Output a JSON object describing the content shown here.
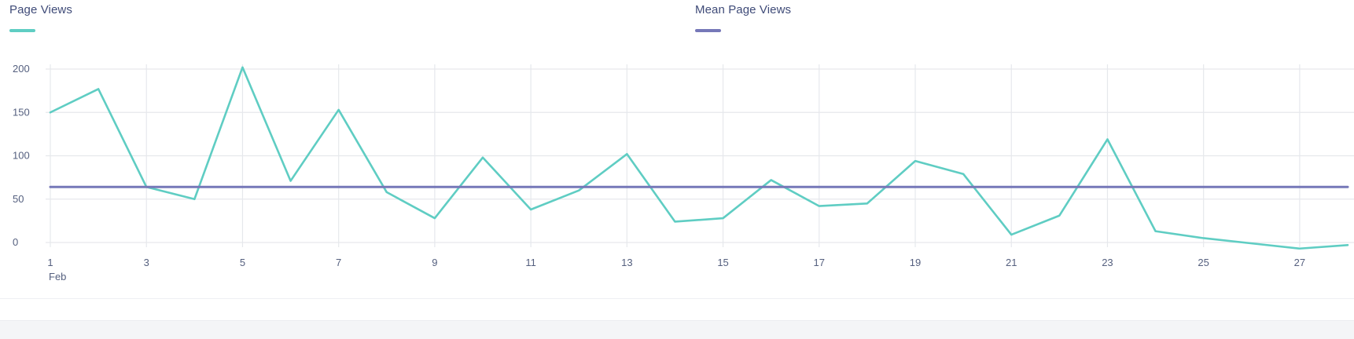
{
  "legend": {
    "series1_label": "Page Views",
    "series2_label": "Mean Page Views"
  },
  "colors": {
    "page_views": "#5fcdc3",
    "mean": "#7678b8",
    "grid": "#e6e8ec",
    "axis_text": "#55607f"
  },
  "chart_data": {
    "type": "line",
    "x": [
      1,
      2,
      3,
      4,
      5,
      6,
      7,
      8,
      9,
      10,
      11,
      12,
      13,
      14,
      15,
      16,
      17,
      18,
      19,
      20,
      21,
      22,
      23,
      24,
      25,
      26,
      27,
      28
    ],
    "x_tick_labels": [
      "1",
      "3",
      "5",
      "7",
      "9",
      "11",
      "13",
      "15",
      "17",
      "19",
      "21",
      "23",
      "25",
      "27"
    ],
    "x_tick_values": [
      1,
      3,
      5,
      7,
      9,
      11,
      13,
      15,
      17,
      19,
      21,
      23,
      25,
      27
    ],
    "x_sublabel": "Feb",
    "y_tick_labels": [
      "0",
      "50",
      "100",
      "150",
      "200"
    ],
    "y_tick_values": [
      0,
      50,
      100,
      150,
      200
    ],
    "ylim": [
      0,
      200
    ],
    "xlim": [
      1,
      28
    ],
    "grid": true,
    "legend_position": "top",
    "series": [
      {
        "name": "Page Views",
        "values": [
          150,
          177,
          64,
          50,
          202,
          71,
          153,
          58,
          28,
          98,
          38,
          60,
          102,
          24,
          28,
          72,
          42,
          45,
          94,
          79,
          9,
          31,
          119,
          13,
          5,
          -1,
          -7,
          -3
        ]
      },
      {
        "name": "Mean Page Views",
        "values": [
          64,
          64,
          64,
          64,
          64,
          64,
          64,
          64,
          64,
          64,
          64,
          64,
          64,
          64,
          64,
          64,
          64,
          64,
          64,
          64,
          64,
          64,
          64,
          64,
          64,
          64,
          64,
          64
        ]
      }
    ]
  }
}
